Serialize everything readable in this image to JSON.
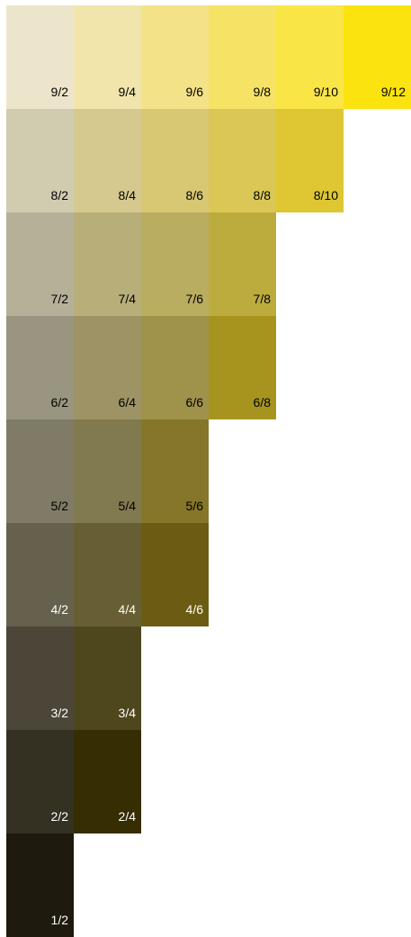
{
  "chart_data": {
    "type": "table",
    "rows": [
      {
        "value": 9,
        "chips": [
          {
            "label": "9/2",
            "color": "#ede5cb",
            "text": "dark"
          },
          {
            "label": "9/4",
            "color": "#f1e5ab",
            "text": "dark"
          },
          {
            "label": "9/6",
            "color": "#f3e287",
            "text": "dark"
          },
          {
            "label": "9/8",
            "color": "#f6e265",
            "text": "dark"
          },
          {
            "label": "9/10",
            "color": "#fae547",
            "text": "dark"
          },
          {
            "label": "9/12",
            "color": "#fbe30f",
            "text": "dark"
          }
        ]
      },
      {
        "value": 8,
        "chips": [
          {
            "label": "8/2",
            "color": "#d1cbb0",
            "text": "dark"
          },
          {
            "label": "8/4",
            "color": "#d5c990",
            "text": "dark"
          },
          {
            "label": "8/6",
            "color": "#d8c773",
            "text": "dark"
          },
          {
            "label": "8/8",
            "color": "#dbc755",
            "text": "dark"
          },
          {
            "label": "8/10",
            "color": "#dec732",
            "text": "dark"
          }
        ]
      },
      {
        "value": 7,
        "chips": [
          {
            "label": "7/2",
            "color": "#b5b097",
            "text": "dark"
          },
          {
            "label": "7/4",
            "color": "#b7ae7a",
            "text": "dark"
          },
          {
            "label": "7/6",
            "color": "#b9ad5f",
            "text": "dark"
          },
          {
            "label": "7/8",
            "color": "#bcac3d",
            "text": "dark"
          }
        ]
      },
      {
        "value": 6,
        "chips": [
          {
            "label": "6/2",
            "color": "#9a9580",
            "text": "dark"
          },
          {
            "label": "6/4",
            "color": "#9d9364",
            "text": "dark"
          },
          {
            "label": "6/6",
            "color": "#9f924b",
            "text": "dark"
          },
          {
            "label": "6/8",
            "color": "#a7941e",
            "text": "dark"
          }
        ]
      },
      {
        "value": 5,
        "chips": [
          {
            "label": "5/2",
            "color": "#7f7b66",
            "text": "dark"
          },
          {
            "label": "5/4",
            "color": "#827a4f",
            "text": "dark"
          },
          {
            "label": "5/6",
            "color": "#857629",
            "text": "dark"
          }
        ]
      },
      {
        "value": 4,
        "chips": [
          {
            "label": "4/2",
            "color": "#66614d",
            "text": "light"
          },
          {
            "label": "4/4",
            "color": "#675f33",
            "text": "light"
          },
          {
            "label": "4/6",
            "color": "#6c5c13",
            "text": "light"
          }
        ]
      },
      {
        "value": 3,
        "chips": [
          {
            "label": "3/2",
            "color": "#4b4637",
            "text": "light"
          },
          {
            "label": "3/4",
            "color": "#4e471e",
            "text": "light"
          }
        ]
      },
      {
        "value": 2,
        "chips": [
          {
            "label": "2/2",
            "color": "#343122",
            "text": "light"
          },
          {
            "label": "2/4",
            "color": "#362d03",
            "text": "light"
          }
        ]
      },
      {
        "value": 1,
        "chips": [
          {
            "label": "1/2",
            "color": "#1e1a0d",
            "text": "light"
          }
        ]
      }
    ]
  }
}
